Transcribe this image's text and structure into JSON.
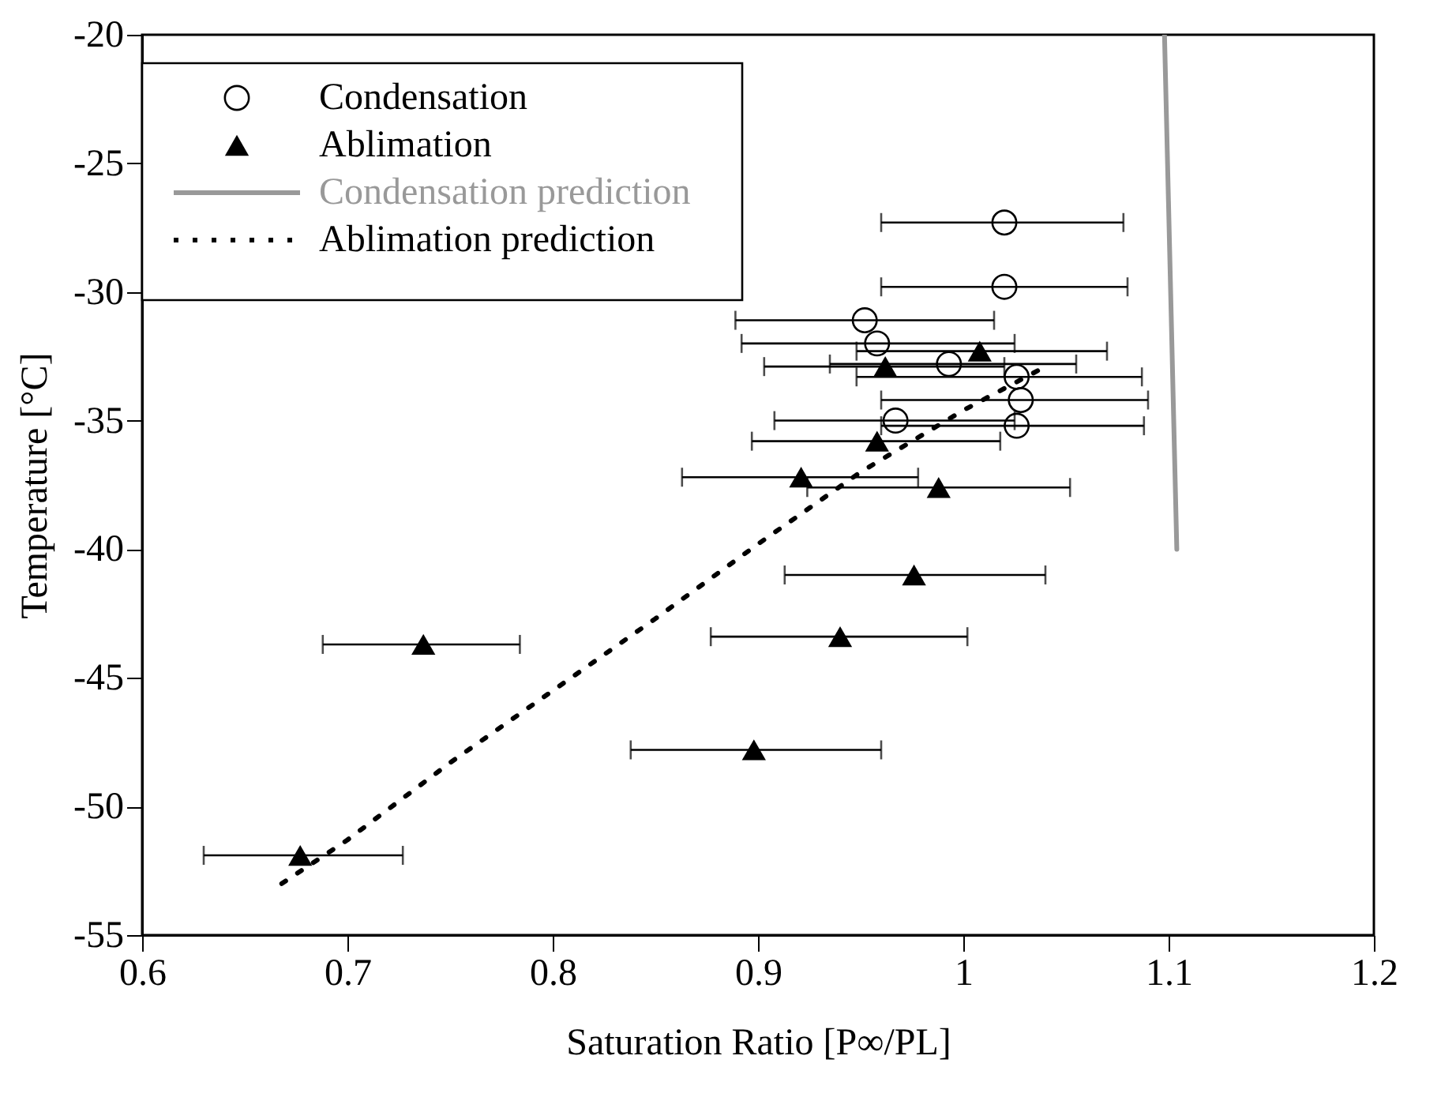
{
  "chart_data": {
    "type": "scatter",
    "xlabel": "Saturation Ratio [P∞/PL]",
    "ylabel": "Temperature [°C]",
    "xlim": [
      0.6,
      1.2
    ],
    "xticks": [
      0.6,
      0.7,
      0.8,
      0.9,
      1,
      1.1,
      1.2
    ],
    "ylim": [
      -55,
      -20
    ],
    "yticks": [
      -55,
      -50,
      -45,
      -40,
      -35,
      -30,
      -25,
      -20
    ],
    "grid": false,
    "legend": "top left",
    "series": [
      {
        "name": "Condensation",
        "marker": "circle",
        "color": "#000000",
        "x": [
          1.02,
          1.02,
          0.952,
          0.958,
          0.993,
          1.026,
          1.028,
          0.967,
          1.026
        ],
        "values": [
          -27.3,
          -29.8,
          -31.1,
          -32.0,
          -32.8,
          -33.3,
          -34.2,
          -35.0,
          -35.2
        ],
        "xerrors": [
          [
            0.96,
            1.078
          ],
          [
            0.96,
            1.08
          ],
          [
            0.889,
            1.015
          ],
          [
            0.892,
            1.025
          ],
          [
            0.935,
            1.055
          ],
          [
            0.948,
            1.087
          ],
          [
            0.96,
            1.09
          ],
          [
            0.908,
            1.025
          ],
          [
            0.96,
            1.088
          ]
        ]
      },
      {
        "name": "Ablimation",
        "marker": "triangle",
        "color": "#000000",
        "x": [
          1.008,
          0.962,
          0.958,
          0.921,
          0.988,
          0.976,
          0.94,
          0.898,
          0.737,
          0.677
        ],
        "values": [
          -32.3,
          -32.9,
          -35.8,
          -37.2,
          -37.6,
          -41.0,
          -43.4,
          -47.8,
          -43.7,
          -51.9
        ],
        "xerrors": [
          [
            0.948,
            1.07
          ],
          [
            0.903,
            1.02
          ],
          [
            0.897,
            1.018
          ],
          [
            0.863,
            0.978
          ],
          [
            0.924,
            1.052
          ],
          [
            0.913,
            1.04
          ],
          [
            0.877,
            1.002
          ],
          [
            0.838,
            0.96
          ],
          [
            0.688,
            0.784
          ],
          [
            0.63,
            0.727
          ]
        ]
      },
      {
        "name": "Condensation prediction",
        "type": "line",
        "line_style": "solid",
        "color": "#999999",
        "x": [
          1.098,
          1.104
        ],
        "values": [
          -20,
          -40
        ]
      },
      {
        "name": "Ablimation prediction",
        "type": "line",
        "line_style": "dotted",
        "color": "#000000",
        "x": [
          0.668,
          0.7,
          0.75,
          0.8,
          0.85,
          0.9,
          0.95,
          1.0,
          1.04
        ],
        "values": [
          -53,
          -51.3,
          -48.3,
          -45.5,
          -42.7,
          -39.8,
          -37.0,
          -34.6,
          -32.9
        ]
      }
    ]
  }
}
